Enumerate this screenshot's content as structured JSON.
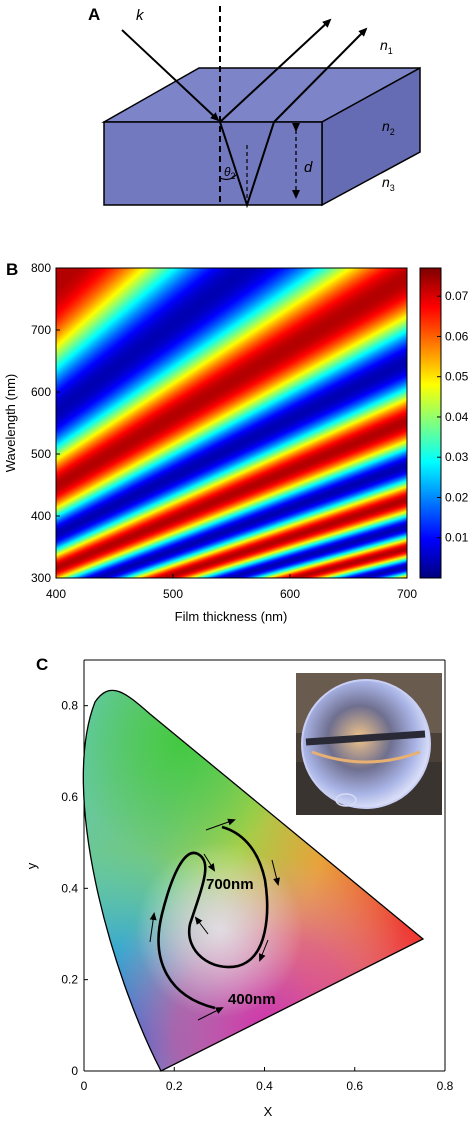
{
  "panels": {
    "A": {
      "label": "A",
      "symbols": {
        "k": "k",
        "n1": "n",
        "n1_sub": "1",
        "n2": "n",
        "n2_sub": "2",
        "n3": "n",
        "n3_sub": "3",
        "theta": "θ",
        "theta_sub": "2",
        "d": "d"
      },
      "colors": {
        "slab_front": "#7379bf",
        "slab_top": "#7d84c8",
        "slab_side": "#666cb3"
      }
    },
    "B": {
      "label": "B",
      "xlabel": "Film thickness (nm)",
      "ylabel": "Wavelength (nm)",
      "xticks": [
        "400",
        "500",
        "600",
        "700"
      ],
      "yticks": [
        "300",
        "400",
        "500",
        "600",
        "700",
        "800"
      ],
      "colorbar_ticks": [
        "0.01",
        "0.02",
        "0.03",
        "0.04",
        "0.05",
        "0.06",
        "0.07"
      ]
    },
    "C": {
      "label": "C",
      "xlabel": "X",
      "ylabel": "y",
      "xticks": [
        "0",
        "0.2",
        "0.4",
        "0.6",
        "0.8"
      ],
      "yticks": [
        "0",
        "0.2",
        "0.4",
        "0.6",
        "0.8"
      ],
      "annotations": {
        "upper": "700nm",
        "lower": "400nm"
      },
      "inset": "soap-bubble-photo"
    }
  },
  "chart_data": [
    {
      "type": "heatmap",
      "title": "",
      "xlabel": "Film thickness (nm)",
      "ylabel": "Wavelength (nm)",
      "xlim": [
        400,
        700
      ],
      "ylim": [
        300,
        800
      ],
      "xticks": [
        400,
        500,
        600,
        700
      ],
      "yticks": [
        300,
        400,
        500,
        600,
        700,
        800
      ],
      "colorbar": {
        "range": [
          0.0,
          0.077
        ],
        "ticks": [
          0.01,
          0.02,
          0.03,
          0.04,
          0.05,
          0.06,
          0.07
        ],
        "colormap": "jet"
      }
    },
    {
      "type": "line",
      "title": "",
      "xlabel": "X",
      "ylabel": "y",
      "xlim": [
        0,
        0.8
      ],
      "ylim": [
        0,
        0.9
      ],
      "xticks": [
        0,
        0.2,
        0.4,
        0.6,
        0.8
      ],
      "yticks": [
        0,
        0.2,
        0.4,
        0.6,
        0.8
      ],
      "grid": false,
      "annotations": [
        "700nm",
        "400nm"
      ]
    }
  ]
}
